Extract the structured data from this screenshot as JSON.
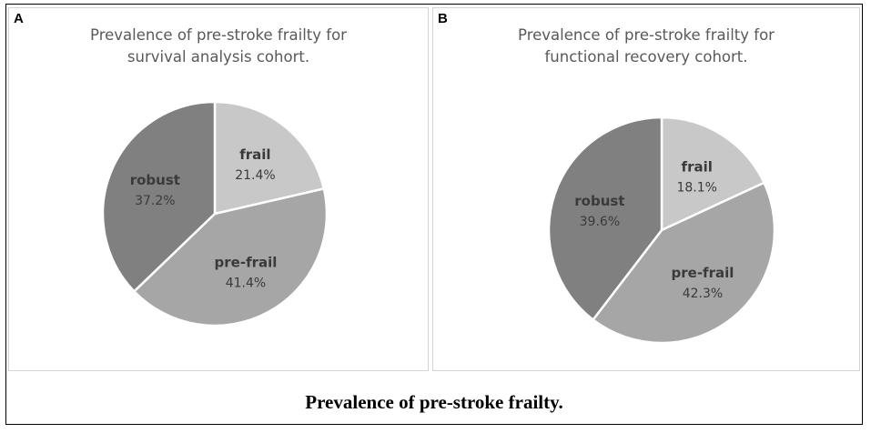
{
  "caption": "Prevalence of pre-stroke frailty.",
  "chart_data": [
    {
      "type": "pie",
      "panel_label": "A",
      "title_lines": [
        "Prevalence of pre-stroke frailty for",
        "survival analysis cohort."
      ],
      "slices": [
        {
          "name": "frail",
          "value": 21.4,
          "label": "21.4%",
          "color": "#c8c8c8"
        },
        {
          "name": "pre-frail",
          "value": 41.4,
          "label": "41.4%",
          "color": "#a6a6a6"
        },
        {
          "name": "robust",
          "value": 37.2,
          "label": "37.2%",
          "color": "#808080"
        }
      ]
    },
    {
      "type": "pie",
      "panel_label": "B",
      "title_lines": [
        "Prevalence of pre-stroke frailty for",
        "functional recovery cohort."
      ],
      "slices": [
        {
          "name": "frail",
          "value": 18.1,
          "label": "18.1%",
          "color": "#c8c8c8"
        },
        {
          "name": "pre-frail",
          "value": 42.3,
          "label": "42.3%",
          "color": "#a6a6a6"
        },
        {
          "name": "robust",
          "value": 39.6,
          "label": "39.6%",
          "color": "#808080"
        }
      ]
    }
  ]
}
